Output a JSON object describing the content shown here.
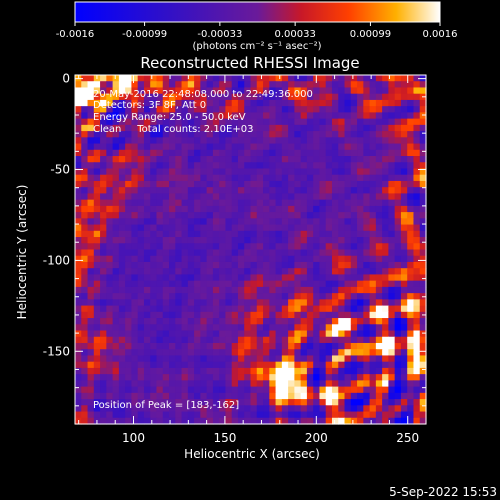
{
  "title": "Reconstructed RHESSI Image",
  "colorbar": {
    "unit_label": "(photons cm⁻² s⁻¹ asec⁻²)",
    "tick_labels": [
      "-0.0016",
      "-0.00099",
      "-0.00033",
      "0.00033",
      "0.00099",
      "0.0016"
    ],
    "range": [
      -0.0016,
      0.0016
    ]
  },
  "info_lines": [
    "20-May-2016 22:48:08.000 to 22:49:36.000",
    "Detectors: 3F 8F, Att 0",
    "Energy Range: 25.0 - 50.0 keV",
    "Clean     Total counts: 2.10E+03"
  ],
  "peak_label": "Position of Peak = [183,-162]",
  "footer_date": "5-Sep-2022 15:53",
  "chart_data": {
    "type": "heatmap",
    "title": "Reconstructed RHESSI Image",
    "xlabel": "Heliocentric X (arcsec)",
    "ylabel": "Heliocentric Y (arcsec)",
    "xlim": [
      68,
      260
    ],
    "ylim": [
      -190,
      2
    ],
    "x_ticks": [
      100,
      150,
      200,
      250
    ],
    "y_ticks": [
      0,
      -50,
      -100,
      -150
    ],
    "x_tick_labels": [
      "100",
      "150",
      "200",
      "250"
    ],
    "y_tick_labels": [
      "0",
      "-50",
      "-100",
      "-150"
    ],
    "value_range": [
      -0.0016,
      0.0016
    ],
    "peak": [
      183,
      -162
    ],
    "colormap": "red-temperature"
  }
}
